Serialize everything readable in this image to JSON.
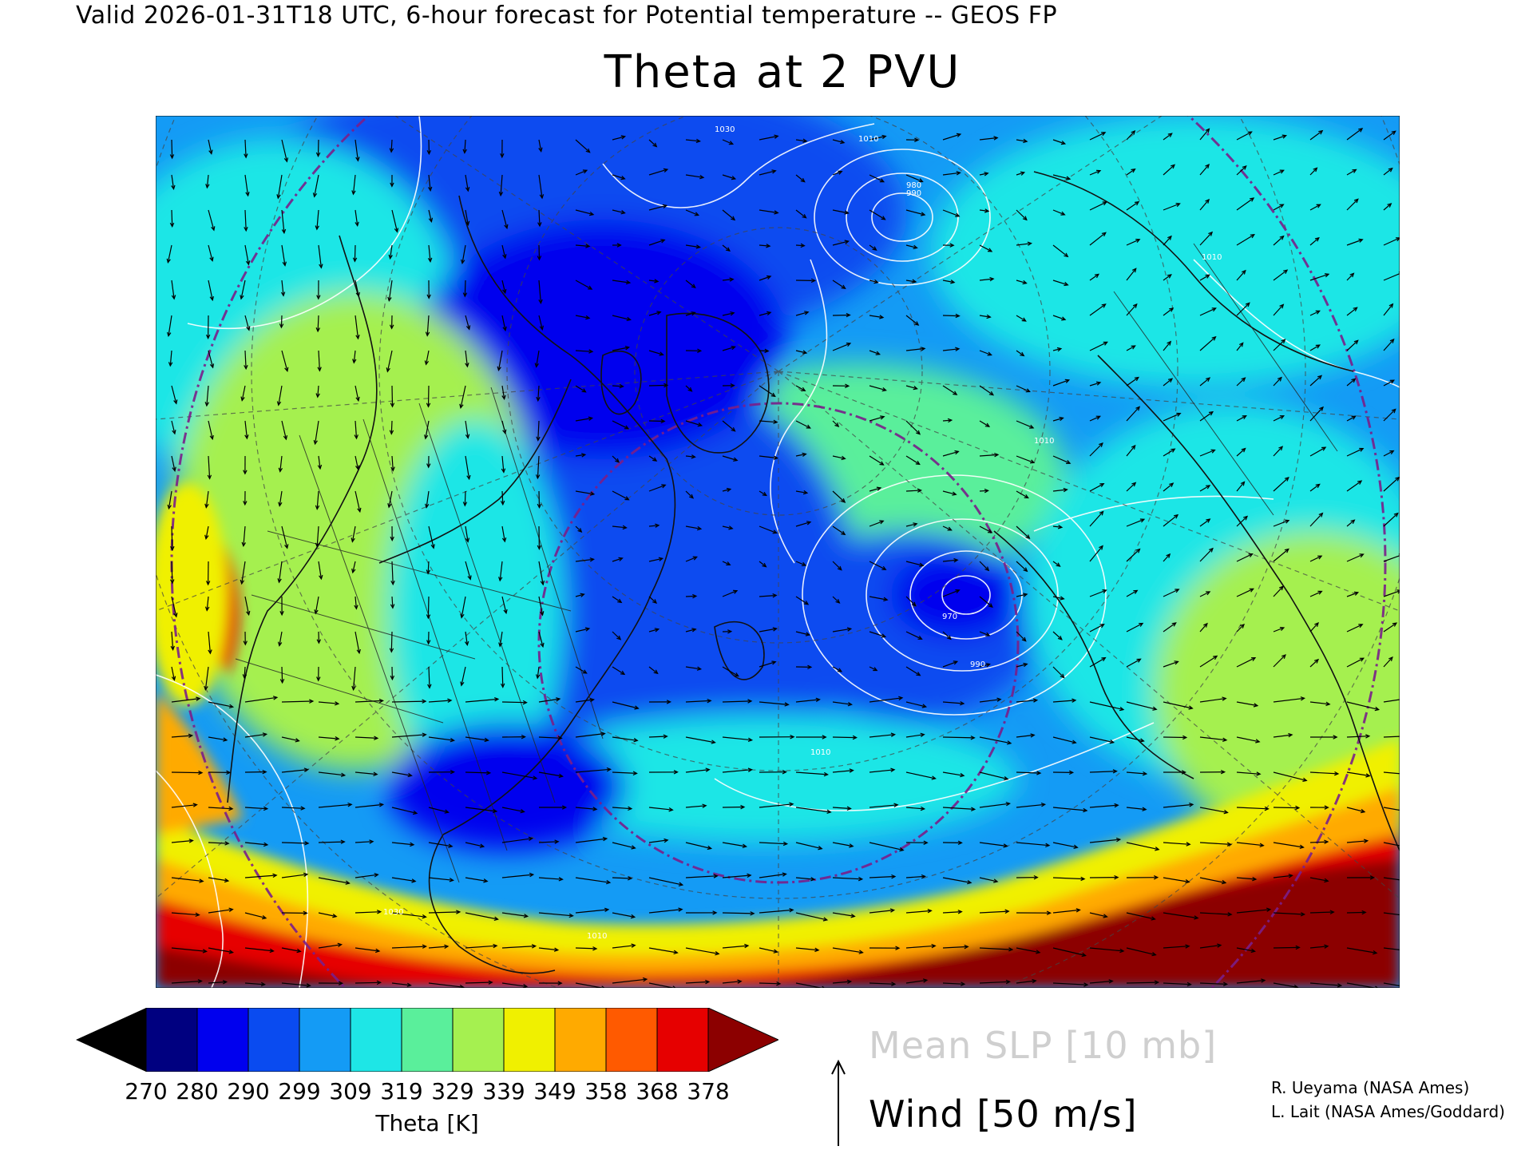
{
  "header": {
    "valid_line": "Valid 2026-01-31T18 UTC, 6-hour forecast for Potential temperature -- GEOS FP",
    "title": "Theta at 2 PVU"
  },
  "colorbar": {
    "title": "Theta [K]",
    "ticks": [
      "270",
      "280",
      "290",
      "299",
      "309",
      "319",
      "329",
      "339",
      "349",
      "358",
      "368",
      "378"
    ],
    "colors": [
      "#000000",
      "#000080",
      "#0000ee",
      "#0a4bf0",
      "#149bf5",
      "#1ee6e6",
      "#5aef9b",
      "#a5f050",
      "#f0f000",
      "#ffaa00",
      "#ff5a00",
      "#e60000",
      "#8c0000"
    ]
  },
  "legend": {
    "slp_label": "Mean SLP [10 mb]",
    "wind_label": "Wind [50 m/s]"
  },
  "credits": {
    "line1": "R. Ueyama (NASA Ames)",
    "line2": "L. Lait (NASA Ames/Goddard)"
  },
  "map": {
    "slp_contour_labels": [
      "1030",
      "1010",
      "990",
      "980",
      "970",
      "990",
      "1010",
      "1010",
      "1030",
      "1010",
      "1010"
    ],
    "palette": {
      "ocean_cold": "#0a4bf0",
      "deep": "#0000ee",
      "cyan": "#1ee6e6",
      "mid": "#149bf5",
      "green": "#5aef9b",
      "yellow": "#f0f000",
      "orange": "#ffaa00",
      "red": "#e60000",
      "darkred": "#8c0000",
      "lime": "#a5f050"
    }
  }
}
